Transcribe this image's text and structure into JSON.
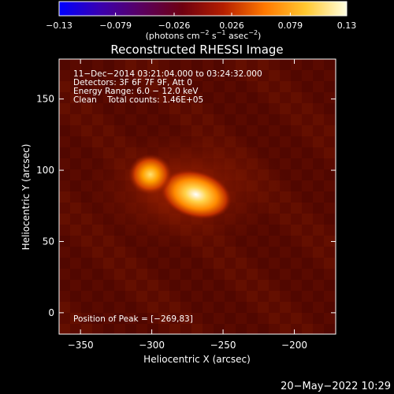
{
  "colorbar": {
    "tick_labels": [
      "−0.13",
      "−0.079",
      "−0.026",
      "0.026",
      "0.079",
      "0.13"
    ],
    "tick_values": [
      -0.13,
      -0.079,
      -0.026,
      0.026,
      0.079,
      0.13
    ],
    "range": [
      -0.13,
      0.13
    ],
    "units_label": "(photons cm",
    "units_exp1": "−2",
    "units_mid": " s",
    "units_exp2": "−1",
    "units_mid2": " asec",
    "units_exp3": "−2",
    "units_end": ")",
    "colors": [
      "#0000ff",
      "#3a00b0",
      "#5a0060",
      "#6e0010",
      "#b41e00",
      "#ff7800",
      "#ffc830",
      "#ffffe0"
    ]
  },
  "chart_data": {
    "type": "heatmap",
    "title": "Reconstructed RHESSI Image",
    "xlabel": "Heliocentric X (arcsec)",
    "ylabel": "Heliocentric Y (arcsec)",
    "xlim": [
      -365,
      -171
    ],
    "ylim": [
      -15,
      178
    ],
    "x_ticks": [
      -350,
      -300,
      -250,
      -200
    ],
    "x_tick_labels": [
      "−350",
      "−300",
      "−250",
      "−200"
    ],
    "y_ticks": [
      0,
      50,
      100,
      150
    ],
    "y_tick_labels": [
      "0",
      "50",
      "100",
      "150"
    ],
    "sources": [
      {
        "x": -269,
        "y": 83,
        "intensity": 0.13
      },
      {
        "x": -301,
        "y": 97,
        "intensity": 0.1
      }
    ],
    "annotations": [
      "11−Dec−2014 03:21:04.000 to 03:24:32.000",
      "Detectors: 3F 6F 7F 9F, Att 0",
      "Energy Range: 6.0 − 12.0 keV",
      "Clean    Total counts: 1.46E+05"
    ],
    "peak_label": "Position of Peak = [−269,83]",
    "peak": [
      -269,
      83
    ],
    "background_color": "#5a0a00"
  },
  "footer": {
    "date": "20−May−2022 10:29"
  }
}
